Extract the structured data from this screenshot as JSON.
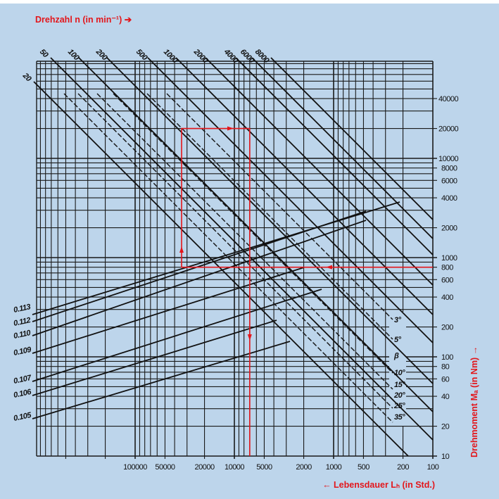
{
  "chart_data": {
    "type": "line",
    "subtype": "nomogram",
    "title_top": "Drehzahl n (in min⁻¹) ➔",
    "xlabel": "← Lebensdauer Lₕ (in Std.)",
    "ylabel": "Drehmoment Mₐ (in Nm) →",
    "x_axis": {
      "scale": "log",
      "reversed": true,
      "range": [
        100,
        1000000
      ],
      "ticks": [
        100000,
        50000,
        20000,
        10000,
        5000,
        2000,
        1000,
        500,
        200,
        100
      ]
    },
    "y_axis": {
      "scale": "log",
      "range": [
        10,
        95000
      ],
      "ticks": [
        10,
        20,
        40,
        60,
        80,
        100,
        200,
        400,
        600,
        800,
        1000,
        2000,
        4000,
        6000,
        8000,
        10000,
        20000,
        40000
      ]
    },
    "speed_series": [
      "20",
      "50",
      "100",
      "200",
      "500",
      "1000",
      "2000",
      "4000",
      "6000",
      "8000"
    ],
    "bearing_factor_series": [
      "0.113",
      "0.112",
      "0.110",
      "0.109",
      "0.107",
      "0.106",
      "0.105"
    ],
    "angle_series": [
      "3°",
      "5°",
      "β",
      "10°",
      "15°",
      "20°",
      "25°",
      "35°"
    ],
    "example_path": {
      "torque_nm": 800,
      "upper_level": 20000,
      "life_hours": 7000,
      "color": "#e3161b"
    },
    "grid": true
  },
  "colors": {
    "background": "#bdd5eb",
    "grid": "#1a1a1a",
    "accent": "#e3161b"
  }
}
